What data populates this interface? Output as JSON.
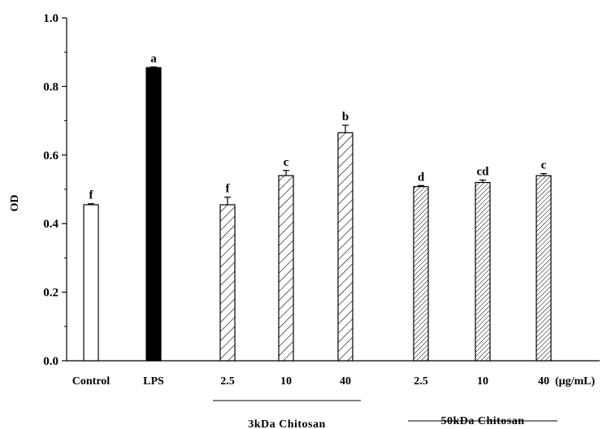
{
  "chart_data": {
    "type": "bar",
    "ylabel": "OD",
    "xlabel": "",
    "ylim": [
      0,
      1.0
    ],
    "yticks": [
      "0.0",
      "0.2",
      "0.4",
      "0.6",
      "0.8",
      "1.0"
    ],
    "unit": "(μg/mL)",
    "bars": [
      {
        "label": "Control",
        "value": 0.455,
        "error": 0.003,
        "letter": "f",
        "fill": "white"
      },
      {
        "label": "LPS",
        "value": 0.855,
        "error": 0.002,
        "letter": "a",
        "fill": "solid"
      },
      {
        "label": "2.5",
        "value": 0.455,
        "error": 0.022,
        "letter": "f",
        "fill": "hatch-wide"
      },
      {
        "label": "10",
        "value": 0.54,
        "error": 0.015,
        "letter": "c",
        "fill": "hatch-wide"
      },
      {
        "label": "40",
        "value": 0.665,
        "error": 0.022,
        "letter": "b",
        "fill": "hatch-wide"
      },
      {
        "label": "2.5",
        "value": 0.508,
        "error": 0.003,
        "letter": "d",
        "fill": "hatch-dense"
      },
      {
        "label": "10",
        "value": 0.52,
        "error": 0.007,
        "letter": "cd",
        "fill": "hatch-dense"
      },
      {
        "label": "40",
        "value": 0.54,
        "error": 0.006,
        "letter": "c",
        "fill": "hatch-dense"
      }
    ],
    "groups": [
      {
        "label": "3kDa Chitosan",
        "bars": [
          2,
          3,
          4
        ]
      },
      {
        "label": "50kDa Chitosan",
        "bars": [
          5,
          6,
          7
        ]
      }
    ]
  }
}
